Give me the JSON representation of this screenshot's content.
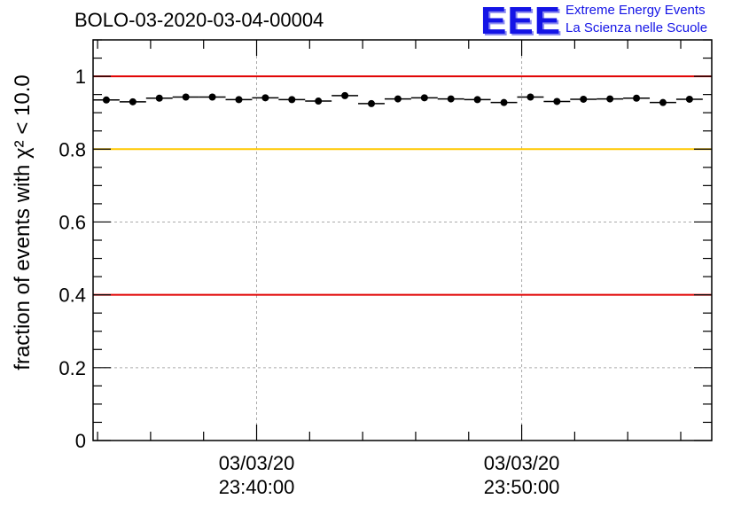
{
  "header": {
    "title": "BOLO-03-2020-03-04-00004",
    "logo_text": "EEE",
    "logo_line1": "Extreme Energy Events",
    "logo_line2": "La Scienza nelle Scuole"
  },
  "colors": {
    "logo": "#1414e6",
    "red_line": "#e00000",
    "yellow_line": "#ffc800",
    "grid": "#aaaaaa"
  },
  "chart_data": {
    "type": "scatter",
    "ylabel": "fraction of events with χ² < 10.0",
    "ylim": [
      0,
      1.1
    ],
    "yticks": [
      {
        "v": 0,
        "label": "0"
      },
      {
        "v": 0.2,
        "label": "0.2"
      },
      {
        "v": 0.4,
        "label": "0.4"
      },
      {
        "v": 0.6,
        "label": "0.6"
      },
      {
        "v": 0.8,
        "label": "0.8"
      },
      {
        "v": 1,
        "label": "1"
      }
    ],
    "xlim_minutes": [
      33.83,
      57.17
    ],
    "xticks": [
      {
        "v": 40,
        "line1": "03/03/20",
        "line2": "23:40:00"
      },
      {
        "v": 50,
        "line1": "03/03/20",
        "line2": "23:50:00"
      }
    ],
    "bin_width_minutes": 1,
    "points": [
      {
        "x": 34.33,
        "y": 0.935
      },
      {
        "x": 35.33,
        "y": 0.93
      },
      {
        "x": 36.33,
        "y": 0.94
      },
      {
        "x": 37.33,
        "y": 0.943
      },
      {
        "x": 38.33,
        "y": 0.943
      },
      {
        "x": 39.33,
        "y": 0.936
      },
      {
        "x": 40.33,
        "y": 0.941
      },
      {
        "x": 41.33,
        "y": 0.936
      },
      {
        "x": 42.33,
        "y": 0.932
      },
      {
        "x": 43.33,
        "y": 0.947
      },
      {
        "x": 44.33,
        "y": 0.925
      },
      {
        "x": 45.33,
        "y": 0.938
      },
      {
        "x": 46.33,
        "y": 0.941
      },
      {
        "x": 47.33,
        "y": 0.938
      },
      {
        "x": 48.33,
        "y": 0.936
      },
      {
        "x": 49.33,
        "y": 0.928
      },
      {
        "x": 50.33,
        "y": 0.943
      },
      {
        "x": 51.33,
        "y": 0.931
      },
      {
        "x": 52.33,
        "y": 0.937
      },
      {
        "x": 53.33,
        "y": 0.938
      },
      {
        "x": 54.33,
        "y": 0.94
      },
      {
        "x": 55.33,
        "y": 0.928
      },
      {
        "x": 56.33,
        "y": 0.937
      }
    ],
    "reference_lines": [
      {
        "y": 1.0,
        "color": "#e00000"
      },
      {
        "y": 0.8,
        "color": "#ffc800"
      },
      {
        "y": 0.4,
        "color": "#e00000"
      }
    ],
    "grid": true
  }
}
